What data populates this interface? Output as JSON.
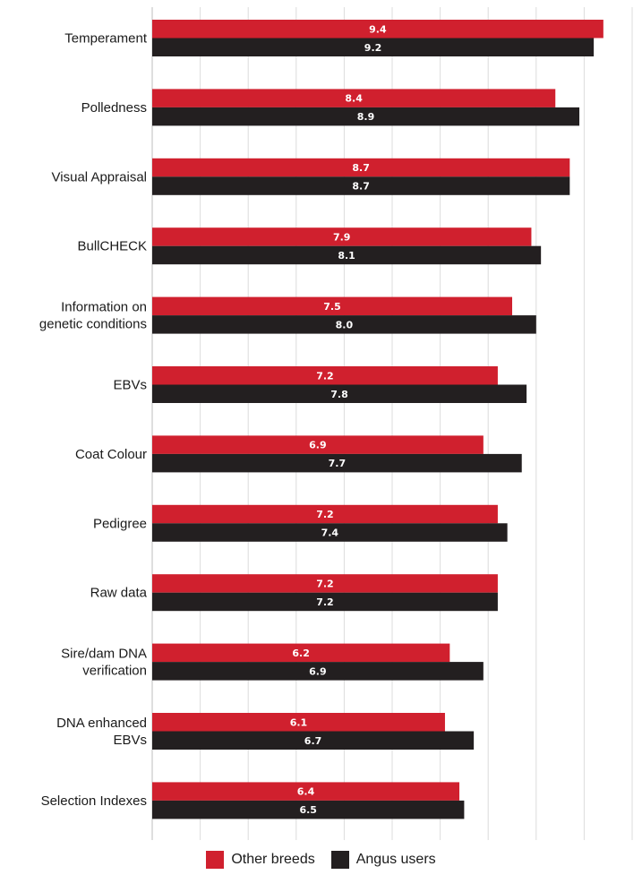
{
  "chart_data": {
    "type": "bar",
    "orientation": "horizontal",
    "categories": [
      "Temperament",
      "Polledness",
      "Visual Appraisal",
      "BullCHECK",
      "Information on genetic conditions",
      "EBVs",
      "Coat Colour",
      "Pedigree",
      "Raw data",
      "Sire/dam DNA verification",
      "DNA enhanced EBVs",
      "Selection Indexes"
    ],
    "category_lines": [
      [
        "Temperament"
      ],
      [
        "Polledness"
      ],
      [
        "Visual Appraisal"
      ],
      [
        "BullCHECK"
      ],
      [
        "Information on",
        "genetic conditions"
      ],
      [
        "EBVs"
      ],
      [
        "Coat Colour"
      ],
      [
        "Pedigree"
      ],
      [
        "Raw data"
      ],
      [
        "Sire/dam DNA",
        "verification"
      ],
      [
        "DNA enhanced",
        "EBVs"
      ],
      [
        "Selection Indexes"
      ]
    ],
    "series": [
      {
        "name": "Other breeds",
        "color": "#d0202e",
        "values": [
          9.4,
          8.4,
          8.7,
          7.9,
          7.5,
          7.2,
          6.9,
          7.2,
          7.2,
          6.2,
          6.1,
          6.4
        ]
      },
      {
        "name": "Angus users",
        "color": "#231f20",
        "values": [
          9.2,
          8.9,
          8.7,
          8.1,
          8.0,
          7.8,
          7.7,
          7.4,
          7.2,
          6.9,
          6.7,
          6.5
        ]
      }
    ],
    "xlim": [
      0,
      10
    ],
    "xticks": [
      0,
      1,
      2,
      3,
      4,
      5,
      6,
      7,
      8,
      9,
      10
    ],
    "title": "",
    "xlabel": "",
    "ylabel": "",
    "grid": true,
    "legend_position": "bottom"
  }
}
